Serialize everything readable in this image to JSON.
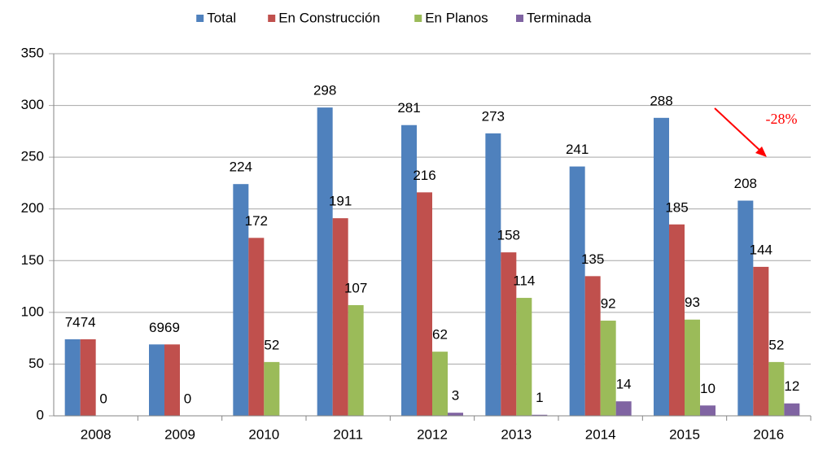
{
  "chart_data": {
    "type": "bar",
    "categories": [
      "2008",
      "2009",
      "2010",
      "2011",
      "2012",
      "2013",
      "2014",
      "2015",
      "2016"
    ],
    "series": [
      {
        "name": "Total",
        "color": "#4f81bd",
        "values": [
          74,
          69,
          224,
          298,
          281,
          273,
          241,
          288,
          208
        ]
      },
      {
        "name": "En Construcción",
        "color": "#c0504d",
        "values": [
          74,
          69,
          172,
          191,
          216,
          158,
          135,
          185,
          144
        ]
      },
      {
        "name": "En Planos",
        "color": "#9bbb59",
        "values": [
          0,
          0,
          52,
          107,
          62,
          114,
          92,
          93,
          52
        ]
      },
      {
        "name": "Terminada",
        "color": "#8064a2",
        "values": [
          null,
          null,
          null,
          null,
          3,
          1,
          14,
          10,
          12
        ]
      }
    ],
    "ylim": [
      0,
      350
    ],
    "yticks": [
      0,
      50,
      100,
      150,
      200,
      250,
      300,
      350
    ],
    "grid": true,
    "legend": "top",
    "annotations": [
      {
        "text": "-28%",
        "color": "#ff0000"
      }
    ]
  }
}
